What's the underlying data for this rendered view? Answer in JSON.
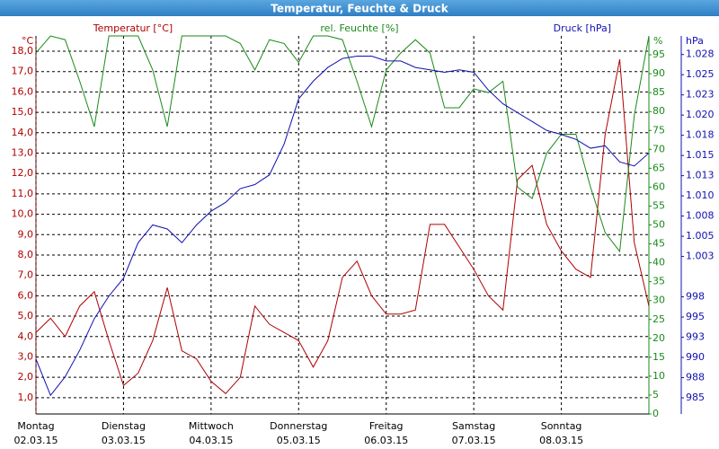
{
  "chart_data": {
    "type": "line",
    "title": "Temperatur, Feuchte & Druck",
    "ylabel": "Temperatur [°C]",
    "y_unit": "°C",
    "y2label": "rel. Feuchte [%]",
    "y2_unit": "%",
    "y3label": "Druck [hPa]",
    "y3_unit": "hPa",
    "grid": true,
    "xlim": [
      0,
      168
    ],
    "xticks": [
      {
        "value": 0,
        "label": "Montag",
        "date": "02.03.15"
      },
      {
        "value": 24,
        "label": "Dienstag",
        "date": "03.03.15"
      },
      {
        "value": 48,
        "label": "Mittwoch",
        "date": "04.03.15"
      },
      {
        "value": 72,
        "label": "Donnerstag",
        "date": "05.03.15"
      },
      {
        "value": 96,
        "label": "Freitag",
        "date": "06.03.15"
      },
      {
        "value": 120,
        "label": "Samstag",
        "date": "07.03.15"
      },
      {
        "value": 144,
        "label": "Sonntag",
        "date": "08.03.15"
      }
    ],
    "ylim": [
      0.2,
      18.75
    ],
    "yticks": [
      {
        "value": 1,
        "label": "1,0"
      },
      {
        "value": 2,
        "label": "2,0"
      },
      {
        "value": 3,
        "label": "3,0"
      },
      {
        "value": 4,
        "label": "4,0"
      },
      {
        "value": 5,
        "label": "5,0"
      },
      {
        "value": 6,
        "label": "6,0"
      },
      {
        "value": 7,
        "label": "7,0"
      },
      {
        "value": 8,
        "label": "8,0"
      },
      {
        "value": 9,
        "label": "9,0"
      },
      {
        "value": 10,
        "label": "10,0"
      },
      {
        "value": 11,
        "label": "11,0"
      },
      {
        "value": 12,
        "label": "12,0"
      },
      {
        "value": 13,
        "label": "13,0"
      },
      {
        "value": 14,
        "label": "14,0"
      },
      {
        "value": 15,
        "label": "15,0"
      },
      {
        "value": 16,
        "label": "16,0"
      },
      {
        "value": 17,
        "label": "17,0"
      },
      {
        "value": 18,
        "label": "18,0"
      }
    ],
    "y2lim": [
      0,
      100
    ],
    "y2ticks": [
      0,
      5,
      10,
      15,
      20,
      25,
      30,
      35,
      40,
      45,
      50,
      55,
      60,
      65,
      70,
      75,
      80,
      85,
      90,
      95
    ],
    "y3lim": [
      983,
      1029.8
    ],
    "y3ticks": [
      985,
      {
        "value": 987.5,
        "label": "988"
      },
      990,
      {
        "value": 992.5,
        "label": "993"
      },
      995,
      {
        "value": 997.5,
        "label": "998"
      },
      {
        "value": 1002.5,
        "label": "1.003"
      },
      {
        "value": 1005,
        "label": "1.005"
      },
      {
        "value": 1007.5,
        "label": "1.008"
      },
      {
        "value": 1010,
        "label": "1.010"
      },
      {
        "value": 1012.5,
        "label": "1.013"
      },
      {
        "value": 1015,
        "label": "1.015"
      },
      {
        "value": 1017.5,
        "label": "1.018"
      },
      {
        "value": 1020,
        "label": "1.020"
      },
      {
        "value": 1022.5,
        "label": "1.023"
      },
      {
        "value": 1025,
        "label": "1.025"
      },
      {
        "value": 1027.5,
        "label": "1.028"
      }
    ],
    "x": [
      0,
      4,
      8,
      12,
      16,
      20,
      24,
      28,
      32,
      36,
      40,
      44,
      48,
      52,
      56,
      60,
      64,
      68,
      72,
      76,
      80,
      84,
      88,
      92,
      96,
      100,
      104,
      108,
      112,
      116,
      120,
      124,
      128,
      132,
      136,
      140,
      144,
      148,
      152,
      156,
      160,
      164,
      168
    ],
    "series": [
      {
        "name": "Temperatur",
        "axis": "y",
        "color": "#b00000",
        "values": [
          4.2,
          4.9,
          4.0,
          5.5,
          6.2,
          3.8,
          1.6,
          2.2,
          3.8,
          6.4,
          3.3,
          2.9,
          1.8,
          1.2,
          2.0,
          5.5,
          4.6,
          4.2,
          3.8,
          2.5,
          3.8,
          6.9,
          7.7,
          6.0,
          5.1,
          5.1,
          5.3,
          9.5,
          9.5,
          8.4,
          7.3,
          6.0,
          5.3,
          11.7,
          12.4,
          9.5,
          8.2,
          7.3,
          6.9,
          13.9,
          17.6,
          8.6,
          5.5
        ]
      },
      {
        "name": "rel. Feuchte",
        "axis": "y2",
        "color": "#1a8a1a",
        "values": [
          95.5,
          100,
          99,
          88,
          76,
          100,
          100,
          100,
          91,
          76,
          100,
          100,
          100,
          100,
          98,
          91,
          99,
          98,
          93,
          100,
          100,
          99,
          88,
          76,
          91,
          95.5,
          99,
          95.5,
          81,
          81,
          86,
          85,
          88,
          60,
          57,
          69,
          74,
          74,
          60,
          48,
          43,
          79,
          100
        ]
      },
      {
        "name": "Druck",
        "axis": "y3",
        "color": "#1010b0",
        "values": [
          989.8,
          985.3,
          987.6,
          990.9,
          994.8,
          997.6,
          999.8,
          1004.2,
          1006.4,
          1005.9,
          1004.2,
          1006.4,
          1008.1,
          1009.2,
          1010.9,
          1011.4,
          1012.6,
          1016.4,
          1022,
          1024.2,
          1025.9,
          1027,
          1027.3,
          1027.3,
          1026.7,
          1026.7,
          1025.9,
          1025.6,
          1025.3,
          1025.6,
          1025.3,
          1023.1,
          1021.4,
          1020.3,
          1019.2,
          1018.1,
          1017.6,
          1017,
          1015.9,
          1016.2,
          1014.2,
          1013.7,
          1015.3
        ]
      }
    ]
  }
}
